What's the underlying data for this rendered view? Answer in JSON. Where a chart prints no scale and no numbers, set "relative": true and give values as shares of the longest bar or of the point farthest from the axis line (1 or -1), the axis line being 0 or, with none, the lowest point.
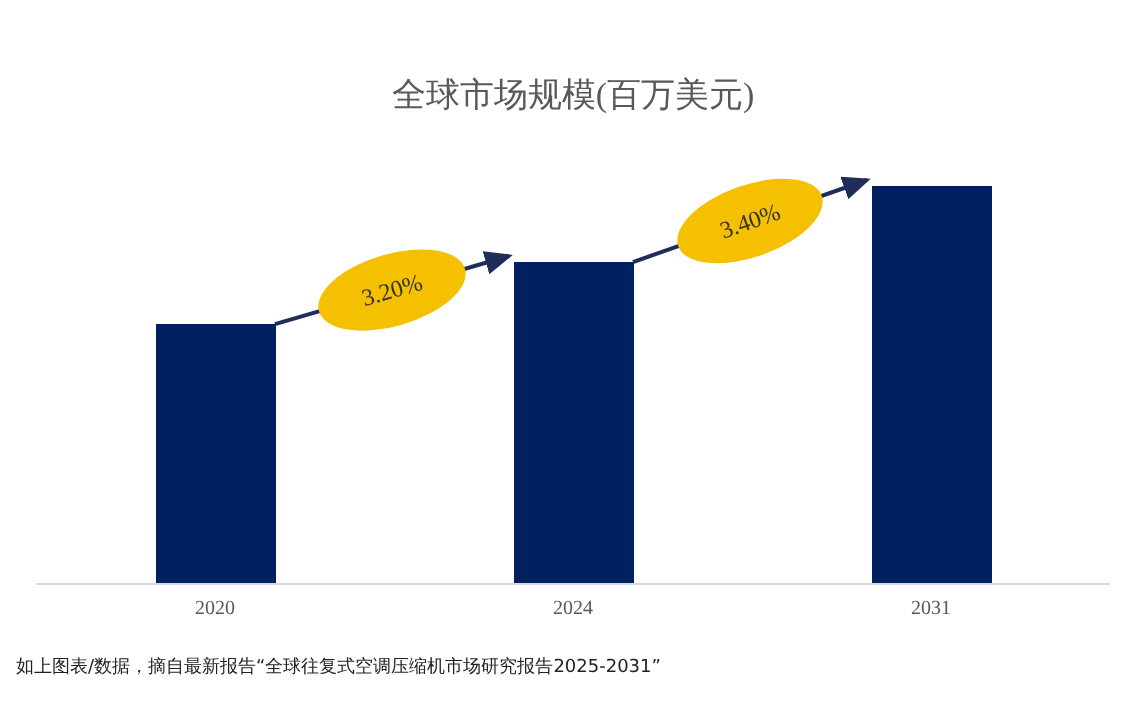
{
  "chart_data": {
    "type": "bar",
    "title": "全球市场规模(百万美元)",
    "categories": [
      "2020",
      "2024",
      "2031"
    ],
    "values": [
      0.653,
      0.809,
      1
    ],
    "color": "#002060",
    "relative": true,
    "annotations": [
      "3.20%",
      "3.40%",
      "如上图表/数据，摘自最新报告“全球往复式空调压缩机市场研究报告2025-2031”"
    ]
  }
}
